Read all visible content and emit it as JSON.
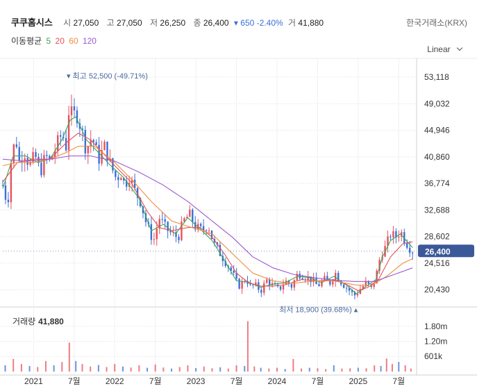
{
  "header": {
    "name": "쿠쿠홈시스",
    "open_label": "시",
    "open": "27,050",
    "high_label": "고",
    "high": "27,050",
    "low_label": "저",
    "low": "26,250",
    "close_label": "종",
    "close": "26,400",
    "change": "▾ 650",
    "change_pct": "-2.40%",
    "volume_label": "거",
    "volume": "41,880",
    "exchange": "한국거래소(KRX)"
  },
  "ma_legend": {
    "title": "이동평균",
    "items": [
      {
        "label": "5",
        "color": "#3aa655"
      },
      {
        "label": "20",
        "color": "#e8505b"
      },
      {
        "label": "60",
        "color": "#f08c3c"
      },
      {
        "label": "120",
        "color": "#9b59d0"
      }
    ]
  },
  "scale_button": "Linear",
  "volume_panel": {
    "title": "거래량",
    "value": "41,880"
  },
  "colors": {
    "up": "#e8505b",
    "down": "#3a6fd8",
    "current_bg": "#3b5998",
    "grid": "#e8e8e8"
  },
  "chart_data": {
    "type": "candlestick",
    "price_axis": {
      "ticks": [
        53118,
        49032,
        44946,
        40860,
        36774,
        32688,
        28602,
        24516,
        20430
      ],
      "tick_labels": [
        "53,118",
        "49,032",
        "44,946",
        "40,860",
        "36,774",
        "32,688",
        "28,602",
        "24,516",
        "20,430"
      ],
      "range": [
        18000,
        56000
      ]
    },
    "volume_axis": {
      "tick_labels": [
        "1.80m",
        "1.20m",
        "601k"
      ],
      "ticks": [
        1800000,
        1200000,
        601000
      ],
      "range": [
        0,
        2400000
      ]
    },
    "x_axis": {
      "labels": [
        "2021",
        "7월",
        "2022",
        "7월",
        "2023",
        "7월",
        "2024",
        "7월",
        "2025",
        "7월"
      ],
      "positions": [
        2021.0,
        2021.5,
        2022.0,
        2022.5,
        2023.0,
        2023.5,
        2024.0,
        2024.5,
        2025.0,
        2025.5
      ],
      "range": [
        2020.62,
        2025.72
      ]
    },
    "close_path": [
      [
        2020.62,
        36500
      ],
      [
        2020.68,
        33500
      ],
      [
        2020.72,
        40000
      ],
      [
        2020.78,
        44000
      ],
      [
        2020.82,
        40000
      ],
      [
        2020.88,
        42000
      ],
      [
        2020.95,
        39500
      ],
      [
        2021.02,
        41000
      ],
      [
        2021.08,
        38500
      ],
      [
        2021.15,
        41000
      ],
      [
        2021.2,
        40000
      ],
      [
        2021.28,
        42500
      ],
      [
        2021.35,
        44500
      ],
      [
        2021.4,
        42500
      ],
      [
        2021.44,
        49000
      ],
      [
        2021.48,
        46500
      ],
      [
        2021.52,
        48000
      ],
      [
        2021.58,
        45500
      ],
      [
        2021.65,
        42000
      ],
      [
        2021.72,
        44000
      ],
      [
        2021.8,
        40500
      ],
      [
        2021.88,
        42500
      ],
      [
        2021.95,
        39500
      ],
      [
        2022.02,
        37500
      ],
      [
        2022.08,
        38500
      ],
      [
        2022.12,
        36500
      ],
      [
        2022.18,
        38000
      ],
      [
        2022.25,
        35500
      ],
      [
        2022.32,
        34000
      ],
      [
        2022.38,
        31000
      ],
      [
        2022.44,
        29000
      ],
      [
        2022.48,
        28000
      ],
      [
        2022.55,
        31500
      ],
      [
        2022.62,
        30000
      ],
      [
        2022.7,
        29000
      ],
      [
        2022.78,
        28500
      ],
      [
        2022.85,
        31000
      ],
      [
        2022.92,
        32000
      ],
      [
        2023.0,
        30000
      ],
      [
        2023.08,
        29500
      ],
      [
        2023.15,
        30500
      ],
      [
        2023.22,
        27500
      ],
      [
        2023.3,
        26000
      ],
      [
        2023.38,
        24500
      ],
      [
        2023.45,
        23000
      ],
      [
        2023.52,
        21000
      ],
      [
        2023.58,
        21500
      ],
      [
        2023.62,
        22500
      ],
      [
        2023.66,
        20800
      ],
      [
        2023.72,
        21200
      ],
      [
        2023.8,
        20300
      ],
      [
        2023.88,
        22000
      ],
      [
        2023.95,
        21000
      ],
      [
        2024.02,
        20400
      ],
      [
        2024.1,
        21800
      ],
      [
        2024.18,
        21000
      ],
      [
        2024.26,
        23000
      ],
      [
        2024.34,
        22500
      ],
      [
        2024.42,
        22000
      ],
      [
        2024.5,
        21000
      ],
      [
        2024.58,
        22000
      ],
      [
        2024.65,
        21500
      ],
      [
        2024.72,
        23000
      ],
      [
        2024.8,
        21500
      ],
      [
        2024.88,
        20500
      ],
      [
        2024.95,
        19500
      ],
      [
        2025.02,
        20500
      ],
      [
        2025.1,
        21500
      ],
      [
        2025.16,
        20500
      ],
      [
        2025.22,
        22500
      ],
      [
        2025.28,
        26000
      ],
      [
        2025.34,
        27000
      ],
      [
        2025.4,
        29000
      ],
      [
        2025.46,
        28500
      ],
      [
        2025.52,
        29500
      ],
      [
        2025.58,
        28000
      ],
      [
        2025.63,
        27000
      ],
      [
        2025.67,
        26400
      ]
    ],
    "moving_averages": [
      {
        "name": "5",
        "values": [
          [
            2020.62,
            36000
          ],
          [
            2020.75,
            41000
          ],
          [
            2020.9,
            41000
          ],
          [
            2021.05,
            40000
          ],
          [
            2021.2,
            40500
          ],
          [
            2021.35,
            43500
          ],
          [
            2021.45,
            46500
          ],
          [
            2021.52,
            47000
          ],
          [
            2021.65,
            43500
          ],
          [
            2021.8,
            41500
          ],
          [
            2021.95,
            39500
          ],
          [
            2022.1,
            37800
          ],
          [
            2022.3,
            34500
          ],
          [
            2022.45,
            29500
          ],
          [
            2022.6,
            30500
          ],
          [
            2022.75,
            29000
          ],
          [
            2022.9,
            31500
          ],
          [
            2023.05,
            29800
          ],
          [
            2023.2,
            28000
          ],
          [
            2023.35,
            25000
          ],
          [
            2023.5,
            21800
          ],
          [
            2023.65,
            21600
          ],
          [
            2023.8,
            20800
          ],
          [
            2023.95,
            21300
          ],
          [
            2024.1,
            21500
          ],
          [
            2024.25,
            22500
          ],
          [
            2024.4,
            22300
          ],
          [
            2024.55,
            21500
          ],
          [
            2024.7,
            22500
          ],
          [
            2024.85,
            21200
          ],
          [
            2024.98,
            19800
          ],
          [
            2025.1,
            21000
          ],
          [
            2025.22,
            22000
          ],
          [
            2025.3,
            25500
          ],
          [
            2025.4,
            28000
          ],
          [
            2025.52,
            29000
          ],
          [
            2025.67,
            26900
          ]
        ]
      },
      {
        "name": "20",
        "values": [
          [
            2020.62,
            37000
          ],
          [
            2020.8,
            40000
          ],
          [
            2021.0,
            40500
          ],
          [
            2021.2,
            40500
          ],
          [
            2021.4,
            43000
          ],
          [
            2021.55,
            44500
          ],
          [
            2021.7,
            43500
          ],
          [
            2021.85,
            41500
          ],
          [
            2022.0,
            39500
          ],
          [
            2022.2,
            37000
          ],
          [
            2022.4,
            32500
          ],
          [
            2022.55,
            30000
          ],
          [
            2022.7,
            29500
          ],
          [
            2022.9,
            30000
          ],
          [
            2023.05,
            30000
          ],
          [
            2023.2,
            28500
          ],
          [
            2023.35,
            26000
          ],
          [
            2023.5,
            23000
          ],
          [
            2023.65,
            21500
          ],
          [
            2023.8,
            21000
          ],
          [
            2023.95,
            21000
          ],
          [
            2024.1,
            21200
          ],
          [
            2024.3,
            22000
          ],
          [
            2024.5,
            21800
          ],
          [
            2024.7,
            22000
          ],
          [
            2024.85,
            21300
          ],
          [
            2025.0,
            20300
          ],
          [
            2025.12,
            20800
          ],
          [
            2025.25,
            22000
          ],
          [
            2025.4,
            25500
          ],
          [
            2025.55,
            27500
          ],
          [
            2025.67,
            27800
          ]
        ]
      },
      {
        "name": "60",
        "values": [
          [
            2020.62,
            39500
          ],
          [
            2020.8,
            40000
          ],
          [
            2021.0,
            40000
          ],
          [
            2021.2,
            40500
          ],
          [
            2021.4,
            41500
          ],
          [
            2021.55,
            42500
          ],
          [
            2021.75,
            42500
          ],
          [
            2022.0,
            40000
          ],
          [
            2022.2,
            37500
          ],
          [
            2022.45,
            34000
          ],
          [
            2022.7,
            31000
          ],
          [
            2022.95,
            30000
          ],
          [
            2023.2,
            29000
          ],
          [
            2023.45,
            26000
          ],
          [
            2023.7,
            23000
          ],
          [
            2023.95,
            21800
          ],
          [
            2024.2,
            21400
          ],
          [
            2024.45,
            21800
          ],
          [
            2024.7,
            21800
          ],
          [
            2024.95,
            21200
          ],
          [
            2025.15,
            21000
          ],
          [
            2025.35,
            22500
          ],
          [
            2025.55,
            24500
          ],
          [
            2025.67,
            25200
          ]
        ]
      },
      {
        "name": "120",
        "values": [
          [
            2020.62,
            40500
          ],
          [
            2020.9,
            40200
          ],
          [
            2021.2,
            40500
          ],
          [
            2021.45,
            41000
          ],
          [
            2021.7,
            41000
          ],
          [
            2022.0,
            40200
          ],
          [
            2022.3,
            38500
          ],
          [
            2022.6,
            36500
          ],
          [
            2022.9,
            34000
          ],
          [
            2023.2,
            31000
          ],
          [
            2023.45,
            28500
          ],
          [
            2023.7,
            25500
          ],
          [
            2023.95,
            23800
          ],
          [
            2024.2,
            22800
          ],
          [
            2024.45,
            22300
          ],
          [
            2024.7,
            21900
          ],
          [
            2024.95,
            21700
          ],
          [
            2025.2,
            21700
          ],
          [
            2025.45,
            22800
          ],
          [
            2025.67,
            23800
          ]
        ]
      }
    ],
    "volume_bars": [
      [
        2020.65,
        250000
      ],
      [
        2020.75,
        500000
      ],
      [
        2020.85,
        300000
      ],
      [
        2020.95,
        220000
      ],
      [
        2021.05,
        180000
      ],
      [
        2021.15,
        420000
      ],
      [
        2021.25,
        250000
      ],
      [
        2021.35,
        380000
      ],
      [
        2021.44,
        1150000
      ],
      [
        2021.52,
        420000
      ],
      [
        2021.6,
        300000
      ],
      [
        2021.7,
        200000
      ],
      [
        2021.8,
        260000
      ],
      [
        2021.9,
        180000
      ],
      [
        2022.0,
        300000
      ],
      [
        2022.1,
        200000
      ],
      [
        2022.2,
        160000
      ],
      [
        2022.3,
        250000
      ],
      [
        2022.4,
        150000
      ],
      [
        2022.5,
        280000
      ],
      [
        2022.6,
        160000
      ],
      [
        2022.7,
        120000
      ],
      [
        2022.8,
        180000
      ],
      [
        2022.9,
        250000
      ],
      [
        2023.0,
        140000
      ],
      [
        2023.1,
        200000
      ],
      [
        2023.2,
        130000
      ],
      [
        2023.3,
        170000
      ],
      [
        2023.4,
        120000
      ],
      [
        2023.5,
        250000
      ],
      [
        2023.6,
        220000
      ],
      [
        2023.64,
        2000000
      ],
      [
        2023.72,
        200000
      ],
      [
        2023.8,
        150000
      ],
      [
        2023.9,
        120000
      ],
      [
        2024.0,
        150000
      ],
      [
        2024.1,
        100000
      ],
      [
        2024.2,
        500000
      ],
      [
        2024.3,
        120000
      ],
      [
        2024.4,
        150000
      ],
      [
        2024.5,
        130000
      ],
      [
        2024.6,
        100000
      ],
      [
        2024.7,
        250000
      ],
      [
        2024.8,
        120000
      ],
      [
        2024.9,
        130000
      ],
      [
        2025.0,
        150000
      ],
      [
        2025.1,
        130000
      ],
      [
        2025.2,
        250000
      ],
      [
        2025.28,
        220000
      ],
      [
        2025.35,
        520000
      ],
      [
        2025.42,
        300000
      ],
      [
        2025.5,
        380000
      ],
      [
        2025.58,
        250000
      ],
      [
        2025.65,
        120000
      ]
    ],
    "annotations": {
      "high": {
        "label": "▾ 최고",
        "value": "52,500",
        "pct": "(-49.71%)",
        "x": 2021.45,
        "y": 52500
      },
      "low": {
        "label": "최저",
        "value": "18,900",
        "pct": "(39.68%) ▴",
        "x": 2024.97,
        "y": 18900
      }
    },
    "current_price": {
      "value": 26400,
      "label": "26,400"
    }
  }
}
